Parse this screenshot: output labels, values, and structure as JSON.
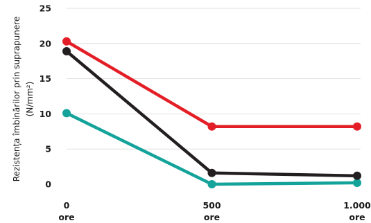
{
  "chart_data": {
    "type": "line",
    "title": "",
    "xlabel": "",
    "ylabel": "Rezistența îmbinărilor prin suprapunere",
    "ylabel_unit": "(N/mm²)",
    "x": [
      "0",
      "500",
      "1.000"
    ],
    "x_sublabels": [
      "ore",
      "ore",
      "ore"
    ],
    "x_values": [
      0,
      500,
      1000
    ],
    "ylim": [
      0,
      25
    ],
    "yticks": [
      "0",
      "5",
      "10",
      "15",
      "20",
      "25"
    ],
    "ytick_values": [
      0,
      5,
      10,
      15,
      20,
      25
    ],
    "grid": true,
    "legend": "none",
    "series": [
      {
        "values": [
          20.3,
          8.2,
          8.2
        ],
        "color": "#e31e26"
      },
      {
        "values": [
          18.9,
          1.6,
          1.2
        ],
        "color": "#231f20"
      },
      {
        "values": [
          10.1,
          0.0,
          0.2
        ],
        "color": "#14a39a"
      }
    ]
  }
}
